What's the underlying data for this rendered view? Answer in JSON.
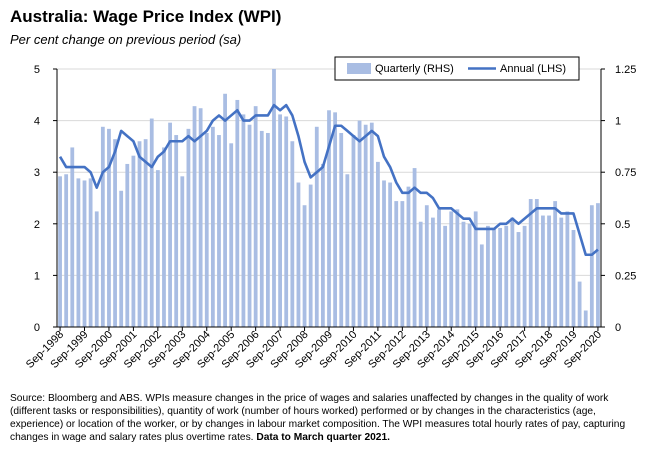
{
  "title": "Australia: Wage Price Index (WPI)",
  "subtitle": "Per cent change on previous period (sa)",
  "source": {
    "text": "Source: Bloomberg and ABS. WPIs measure changes in the price of wages and salaries unaffected by changes in the quality of work (different tasks or responsibilities), quantity of work (number of hours worked) performed or by changes in the characteristics (age, experience) or location of the worker, or by changes in labour market composition. The WPI measures total hourly rates of pay, capturing changes in wage and salary rates plus overtime rates.",
    "bold_note": "Data to March quarter 2021."
  },
  "colors": {
    "bar": "#a9bde3",
    "line": "#4472c4",
    "axis": "#000000"
  },
  "chart_data": {
    "type": "bar+line",
    "title": "Australia: Wage Price Index (WPI)",
    "subtitle": "Per cent change on previous period (sa)",
    "x_tick_labels": [
      "Sep-1998",
      "Sep-1999",
      "Sep-2000",
      "Sep-2001",
      "Sep-2002",
      "Sep-2003",
      "Sep-2004",
      "Sep-2005",
      "Sep-2006",
      "Sep-2007",
      "Sep-2008",
      "Sep-2009",
      "Sep-2010",
      "Sep-2011",
      "Sep-2012",
      "Sep-2013",
      "Sep-2014",
      "Sep-2015",
      "Sep-2016",
      "Sep-2017",
      "Sep-2018",
      "Sep-2019",
      "Sep-2020"
    ],
    "x_start": "Sep-1998",
    "x_end": "Mar-2021",
    "frequency": "quarterly",
    "left_axis": {
      "ylim": [
        0,
        5
      ],
      "ticks": [
        "0",
        "1",
        "2",
        "3",
        "4",
        "5"
      ]
    },
    "right_axis": {
      "ylim": [
        0,
        1.25
      ],
      "ticks": [
        "0",
        "0.25",
        "0.5",
        "0.75",
        "1",
        "1.25"
      ]
    },
    "legend": {
      "position": "top-right",
      "entries": [
        "Quarterly (RHS)",
        "Annual (LHS)"
      ]
    },
    "series": [
      {
        "name": "Quarterly (RHS)",
        "type": "bar",
        "axis": "right",
        "values": [
          0.73,
          0.74,
          0.87,
          0.72,
          0.71,
          0.72,
          0.56,
          0.97,
          0.96,
          0.91,
          0.66,
          0.79,
          0.83,
          0.9,
          0.91,
          1.01,
          0.76,
          0.87,
          0.99,
          0.93,
          0.73,
          0.96,
          1.07,
          1.06,
          0.94,
          0.97,
          0.93,
          1.13,
          0.89,
          1.1,
          1.03,
          0.98,
          1.07,
          0.95,
          0.94,
          1.25,
          1.03,
          1.02,
          0.9,
          0.7,
          0.59,
          0.69,
          0.97,
          0.79,
          1.05,
          1.04,
          0.94,
          0.74,
          0.93,
          1.0,
          0.98,
          0.99,
          0.8,
          0.71,
          0.7,
          0.61,
          0.61,
          0.68,
          0.77,
          0.51,
          0.59,
          0.53,
          0.57,
          0.49,
          0.56,
          0.57,
          0.51,
          0.5,
          0.56,
          0.4,
          0.49,
          0.48,
          0.48,
          0.49,
          0.53,
          0.46,
          0.49,
          0.62,
          0.62,
          0.54,
          0.54,
          0.61,
          0.53,
          0.56,
          0.47,
          0.22,
          0.08,
          0.59,
          0.6
        ],
        "color": "#a9bde3"
      },
      {
        "name": "Annual (LHS)",
        "type": "line",
        "axis": "left",
        "values": [
          3.3,
          3.1,
          3.1,
          3.1,
          3.1,
          3.0,
          2.7,
          3.0,
          3.1,
          3.4,
          3.8,
          3.7,
          3.6,
          3.3,
          3.2,
          3.1,
          3.3,
          3.4,
          3.6,
          3.6,
          3.6,
          3.7,
          3.6,
          3.7,
          3.8,
          4.0,
          4.1,
          4.0,
          4.1,
          4.2,
          4.0,
          4.0,
          4.1,
          4.1,
          4.1,
          4.3,
          4.2,
          4.3,
          4.1,
          3.7,
          3.2,
          2.9,
          3.0,
          3.1,
          3.5,
          3.9,
          3.9,
          3.8,
          3.7,
          3.6,
          3.7,
          3.8,
          3.7,
          3.3,
          3.1,
          2.8,
          2.6,
          2.6,
          2.7,
          2.6,
          2.6,
          2.5,
          2.3,
          2.3,
          2.3,
          2.2,
          2.1,
          2.1,
          1.9,
          1.9,
          1.9,
          1.9,
          2.0,
          2.0,
          2.1,
          2.0,
          2.1,
          2.2,
          2.3,
          2.3,
          2.3,
          2.3,
          2.2,
          2.2,
          2.2,
          1.8,
          1.4,
          1.4,
          1.5
        ],
        "color": "#4472c4"
      }
    ]
  }
}
